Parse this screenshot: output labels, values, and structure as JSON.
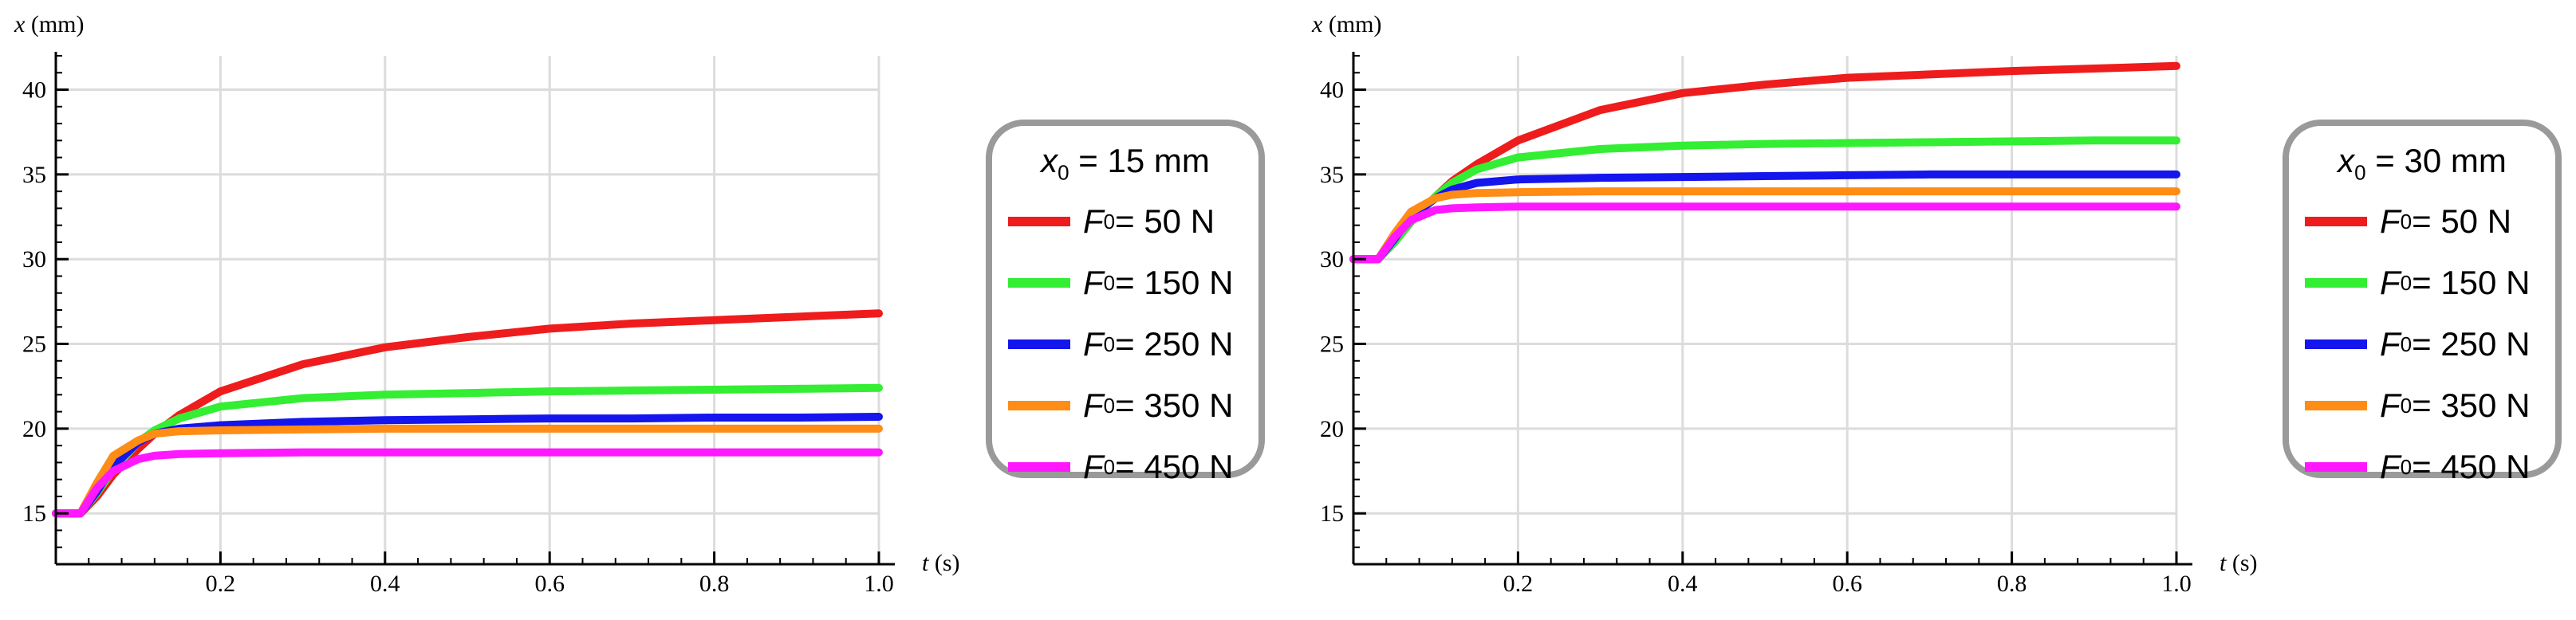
{
  "colors": {
    "red": "#ee1c1c",
    "green": "#33ee33",
    "blue": "#1515ee",
    "orange": "#ff8c14",
    "magenta": "#ff18ff",
    "grid": "#dcdcdc",
    "axis": "#000000",
    "frame": "#9a9a9a"
  },
  "chart_data": [
    {
      "type": "line",
      "id": "left",
      "xlabel": "t",
      "xunit": "(s)",
      "ylabel": "x",
      "yunit": "(mm)",
      "xlim": [
        0,
        1.0
      ],
      "ylim": [
        12,
        42
      ],
      "xticks": [
        0.2,
        0.4,
        0.6,
        0.8,
        1.0
      ],
      "xtick_labels": [
        "0.2",
        "0.4",
        "0.6",
        "0.8",
        "1.0"
      ],
      "yticks": [
        15,
        20,
        25,
        30,
        35,
        40
      ],
      "ytick_labels": [
        "15",
        "20",
        "25",
        "30",
        "35",
        "40"
      ],
      "legend_title": {
        "symbol": "x",
        "sub": "0",
        "text": " = 15 mm"
      },
      "series": [
        {
          "name": "F0 = 50 N",
          "symbol": "F",
          "sub": "0",
          "label": " = 50 N",
          "color": "red",
          "x": [
            0,
            0.03,
            0.05,
            0.07,
            0.1,
            0.12,
            0.15,
            0.2,
            0.3,
            0.4,
            0.5,
            0.6,
            0.7,
            0.8,
            0.9,
            1.0
          ],
          "y": [
            15,
            15,
            16,
            17.3,
            18.8,
            19.7,
            20.8,
            22.2,
            23.8,
            24.8,
            25.4,
            25.9,
            26.2,
            26.4,
            26.6,
            26.8
          ]
        },
        {
          "name": "F0 = 150 N",
          "symbol": "F",
          "sub": "0",
          "label": " = 150 N",
          "color": "green",
          "x": [
            0,
            0.03,
            0.05,
            0.07,
            0.1,
            0.12,
            0.15,
            0.2,
            0.3,
            0.4,
            0.5,
            0.6,
            0.7,
            0.8,
            0.9,
            1.0
          ],
          "y": [
            15,
            15,
            16.2,
            17.6,
            19.2,
            19.9,
            20.6,
            21.3,
            21.8,
            22.0,
            22.1,
            22.2,
            22.25,
            22.3,
            22.35,
            22.4
          ]
        },
        {
          "name": "F0 = 250 N",
          "symbol": "F",
          "sub": "0",
          "label": " = 250 N",
          "color": "blue",
          "x": [
            0,
            0.03,
            0.05,
            0.07,
            0.1,
            0.12,
            0.15,
            0.2,
            0.3,
            0.4,
            0.5,
            0.6,
            0.7,
            0.8,
            0.9,
            1.0
          ],
          "y": [
            15,
            15,
            16.3,
            17.8,
            19.2,
            19.7,
            20.0,
            20.2,
            20.4,
            20.5,
            20.55,
            20.6,
            20.6,
            20.65,
            20.65,
            20.7
          ]
        },
        {
          "name": "F0 = 350 N",
          "symbol": "F",
          "sub": "0",
          "label": " = 350 N",
          "color": "orange",
          "x": [
            0,
            0.03,
            0.05,
            0.07,
            0.1,
            0.12,
            0.15,
            0.2,
            0.3,
            0.4,
            0.5,
            0.6,
            0.7,
            0.8,
            0.9,
            1.0
          ],
          "y": [
            15,
            15,
            16.8,
            18.4,
            19.3,
            19.7,
            19.85,
            19.9,
            19.95,
            20.0,
            20.0,
            20.0,
            20.0,
            20.0,
            20.0,
            20.0
          ]
        },
        {
          "name": "F0 = 450 N",
          "symbol": "F",
          "sub": "0",
          "label": " = 450 N",
          "color": "magenta",
          "x": [
            0,
            0.03,
            0.05,
            0.07,
            0.1,
            0.12,
            0.15,
            0.2,
            0.3,
            0.4,
            0.5,
            0.6,
            0.7,
            0.8,
            0.9,
            1.0
          ],
          "y": [
            15,
            15,
            16.5,
            17.5,
            18.2,
            18.4,
            18.5,
            18.55,
            18.6,
            18.6,
            18.6,
            18.6,
            18.6,
            18.6,
            18.6,
            18.6
          ]
        }
      ]
    },
    {
      "type": "line",
      "id": "right",
      "xlabel": "t",
      "xunit": "(s)",
      "ylabel": "x",
      "yunit": "(mm)",
      "xlim": [
        0,
        1.0
      ],
      "ylim": [
        12,
        42
      ],
      "xticks": [
        0.2,
        0.4,
        0.6,
        0.8,
        1.0
      ],
      "xtick_labels": [
        "0.2",
        "0.4",
        "0.6",
        "0.8",
        "1.0"
      ],
      "yticks": [
        15,
        20,
        25,
        30,
        35,
        40
      ],
      "ytick_labels": [
        "15",
        "20",
        "25",
        "30",
        "35",
        "40"
      ],
      "legend_title": {
        "symbol": "x",
        "sub": "0",
        "text": " = 30 mm"
      },
      "series": [
        {
          "name": "F0 = 50 N",
          "symbol": "F",
          "sub": "0",
          "label": " = 50 N",
          "color": "red",
          "x": [
            0,
            0.03,
            0.05,
            0.07,
            0.1,
            0.12,
            0.15,
            0.2,
            0.3,
            0.4,
            0.5,
            0.6,
            0.7,
            0.8,
            0.9,
            1.0
          ],
          "y": [
            30,
            30,
            31,
            32.2,
            33.7,
            34.6,
            35.6,
            37.0,
            38.8,
            39.8,
            40.3,
            40.7,
            40.9,
            41.1,
            41.25,
            41.4
          ]
        },
        {
          "name": "F0 = 150 N",
          "symbol": "F",
          "sub": "0",
          "label": " = 150 N",
          "color": "green",
          "x": [
            0,
            0.03,
            0.05,
            0.07,
            0.1,
            0.12,
            0.15,
            0.2,
            0.3,
            0.4,
            0.5,
            0.6,
            0.7,
            0.8,
            0.9,
            1.0
          ],
          "y": [
            30,
            30,
            31,
            32.2,
            33.7,
            34.5,
            35.3,
            36.0,
            36.5,
            36.7,
            36.8,
            36.85,
            36.9,
            36.95,
            37.0,
            37.0
          ]
        },
        {
          "name": "F0 = 250 N",
          "symbol": "F",
          "sub": "0",
          "label": " = 250 N",
          "color": "blue",
          "x": [
            0,
            0.03,
            0.05,
            0.07,
            0.1,
            0.12,
            0.15,
            0.2,
            0.3,
            0.4,
            0.5,
            0.6,
            0.7,
            0.8,
            0.9,
            1.0
          ],
          "y": [
            30,
            30,
            31.2,
            32.5,
            33.6,
            34.1,
            34.5,
            34.7,
            34.8,
            34.85,
            34.9,
            34.95,
            35.0,
            35.0,
            35.0,
            35.0
          ]
        },
        {
          "name": "F0 = 350 N",
          "symbol": "F",
          "sub": "0",
          "label": " = 350 N",
          "color": "orange",
          "x": [
            0,
            0.03,
            0.05,
            0.07,
            0.1,
            0.12,
            0.15,
            0.2,
            0.3,
            0.4,
            0.5,
            0.6,
            0.7,
            0.8,
            0.9,
            1.0
          ],
          "y": [
            30,
            30,
            31.5,
            32.8,
            33.6,
            33.8,
            33.9,
            33.95,
            34.0,
            34.0,
            34.0,
            34.0,
            34.0,
            34.0,
            34.0,
            34.0
          ]
        },
        {
          "name": "F0 = 450 N",
          "symbol": "F",
          "sub": "0",
          "label": " = 450 N",
          "color": "magenta",
          "x": [
            0,
            0.03,
            0.05,
            0.07,
            0.1,
            0.12,
            0.15,
            0.2,
            0.3,
            0.4,
            0.5,
            0.6,
            0.7,
            0.8,
            0.9,
            1.0
          ],
          "y": [
            30,
            30,
            31.3,
            32.3,
            32.9,
            33.0,
            33.05,
            33.1,
            33.1,
            33.1,
            33.1,
            33.1,
            33.1,
            33.1,
            33.1,
            33.1
          ]
        }
      ]
    }
  ]
}
